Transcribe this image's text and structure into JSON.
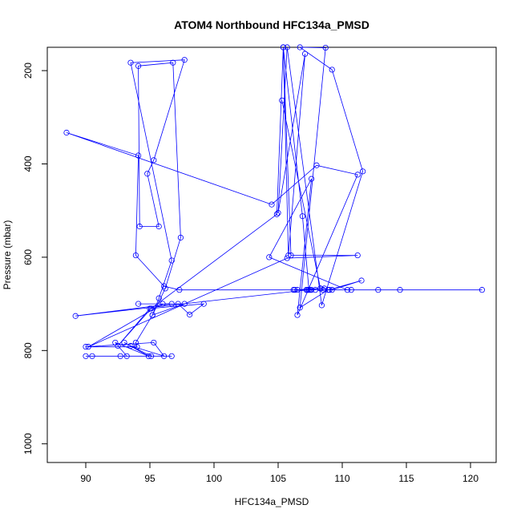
{
  "chart_data": {
    "type": "line",
    "title": "ATOM4 Northbound HFC134a_PMSD",
    "xlabel": "HFC134a_PMSD",
    "ylabel": "Pressure (mbar)",
    "xlim": [
      87,
      122
    ],
    "ylim": [
      1040,
      150
    ],
    "y_reversed": true,
    "grid": false,
    "legend": "none",
    "x_ticks": [
      90,
      95,
      100,
      105,
      110,
      115,
      120
    ],
    "y_ticks": [
      200,
      400,
      600,
      800,
      1000
    ],
    "series": [
      {
        "color": "#0000ff",
        "marker": "open-circle",
        "points": [
          [
            96.7,
            812
          ],
          [
            92.7,
            812
          ],
          [
            90.0,
            812
          ],
          [
            90.5,
            812
          ],
          [
            93.2,
            812
          ],
          [
            92.3,
            783
          ],
          [
            94.9,
            812
          ],
          [
            93.0,
            783
          ],
          [
            95.1,
            812
          ],
          [
            93.5,
            790
          ],
          [
            96.1,
            812
          ],
          [
            95.3,
            783
          ],
          [
            90.0,
            792
          ],
          [
            94.0,
            792
          ],
          [
            93.9,
            783
          ],
          [
            95.2,
            724
          ],
          [
            96.2,
            667
          ],
          [
            97.4,
            558
          ],
          [
            96.8,
            183
          ],
          [
            94.1,
            190
          ],
          [
            94.2,
            534
          ],
          [
            95.7,
            534
          ],
          [
            94.8,
            421
          ],
          [
            95.3,
            392
          ],
          [
            97.7,
            177
          ],
          [
            93.5,
            183
          ],
          [
            96.7,
            607
          ],
          [
            95.7,
            688
          ],
          [
            95.2,
            724
          ],
          [
            97.7,
            700
          ],
          [
            94.1,
            700
          ],
          [
            96.7,
            700
          ],
          [
            89.2,
            726
          ],
          [
            107.3,
            670
          ],
          [
            120.9,
            670
          ],
          [
            106.3,
            670
          ],
          [
            107.6,
            670
          ],
          [
            114.5,
            670
          ],
          [
            112.8,
            670
          ],
          [
            110.4,
            670
          ],
          [
            104.3,
            600
          ],
          [
            107.6,
            432
          ],
          [
            106.5,
            724
          ],
          [
            111.2,
            423
          ],
          [
            108.0,
            403
          ],
          [
            104.5,
            487
          ],
          [
            88.5,
            333
          ],
          [
            94.1,
            382
          ],
          [
            93.9,
            596
          ],
          [
            96.1,
            662
          ],
          [
            97.3,
            670
          ],
          [
            106.2,
            670
          ],
          [
            108.3,
            667
          ],
          [
            107.2,
            670
          ],
          [
            107.9,
            670
          ],
          [
            109.2,
            670
          ],
          [
            111.5,
            650
          ],
          [
            108.9,
            670
          ],
          [
            106.7,
            708
          ],
          [
            108.7,
            151
          ],
          [
            106.7,
            150
          ],
          [
            109.2,
            198
          ],
          [
            111.6,
            416
          ],
          [
            108.4,
            703
          ],
          [
            105.7,
            150
          ],
          [
            105.0,
            505
          ],
          [
            107.1,
            164
          ],
          [
            105.8,
            596
          ],
          [
            105.4,
            150
          ],
          [
            104.9,
            508
          ],
          [
            95.1,
            710
          ],
          [
            92.5,
            790
          ],
          [
            95.0,
            710
          ],
          [
            99.2,
            700
          ],
          [
            98.1,
            723
          ],
          [
            97.2,
            700
          ],
          [
            96.0,
            700
          ],
          [
            90.2,
            792
          ],
          [
            105.7,
            602
          ],
          [
            111.2,
            596
          ],
          [
            106.0,
            596
          ],
          [
            105.4,
            150
          ],
          [
            106.9,
            512
          ],
          [
            107.4,
            670
          ],
          [
            107.3,
            670
          ],
          [
            107.5,
            670
          ],
          [
            106.5,
            670
          ],
          [
            108.5,
            670
          ],
          [
            110.7,
            670
          ],
          [
            109.0,
            670
          ],
          [
            108.6,
            667
          ],
          [
            108.3,
            667
          ],
          [
            105.3,
            264
          ]
        ]
      }
    ]
  }
}
